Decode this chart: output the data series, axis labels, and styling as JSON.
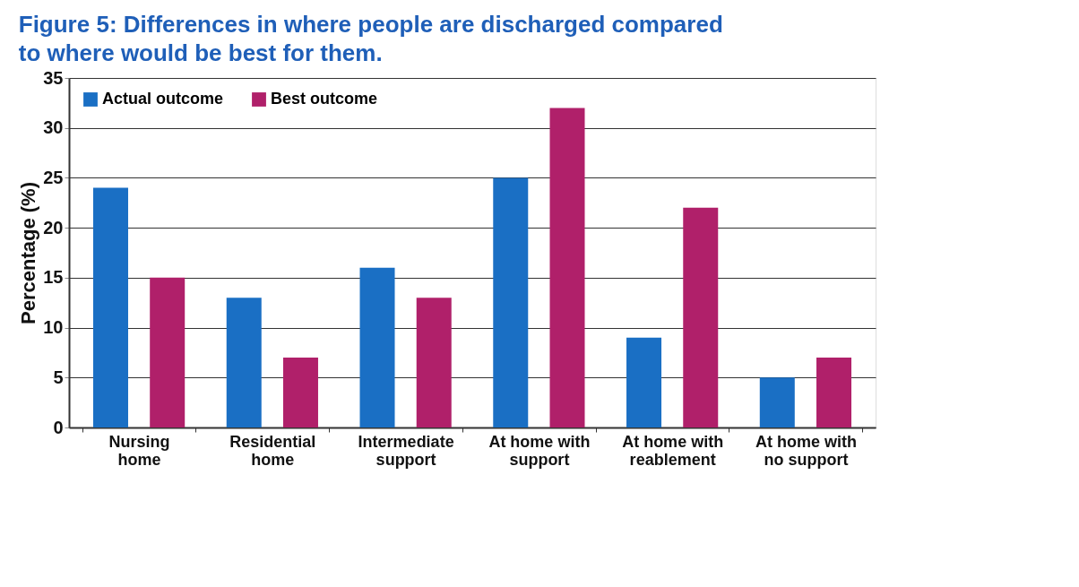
{
  "chart_data": {
    "type": "bar",
    "title": "Figure 5: Differences in where people are discharged compared to where would be best for them.",
    "categories": [
      "Nursing home",
      "Residential home",
      "Intermediate support",
      "At home with support",
      "At home with reablement",
      "At home with no support"
    ],
    "series": [
      {
        "name": "Actual outcome",
        "color": "#1a6fc4",
        "values": [
          24,
          13,
          16,
          25,
          9,
          5
        ]
      },
      {
        "name": "Best outcome",
        "color": "#b0206a",
        "values": [
          15,
          7,
          13,
          32,
          22,
          7
        ]
      }
    ],
    "ylabel": "Percentage (%)",
    "ylim": [
      0,
      35
    ],
    "yticks": [
      0,
      5,
      10,
      15,
      20,
      25,
      30,
      35
    ],
    "grid": "y",
    "legend": "top left"
  }
}
